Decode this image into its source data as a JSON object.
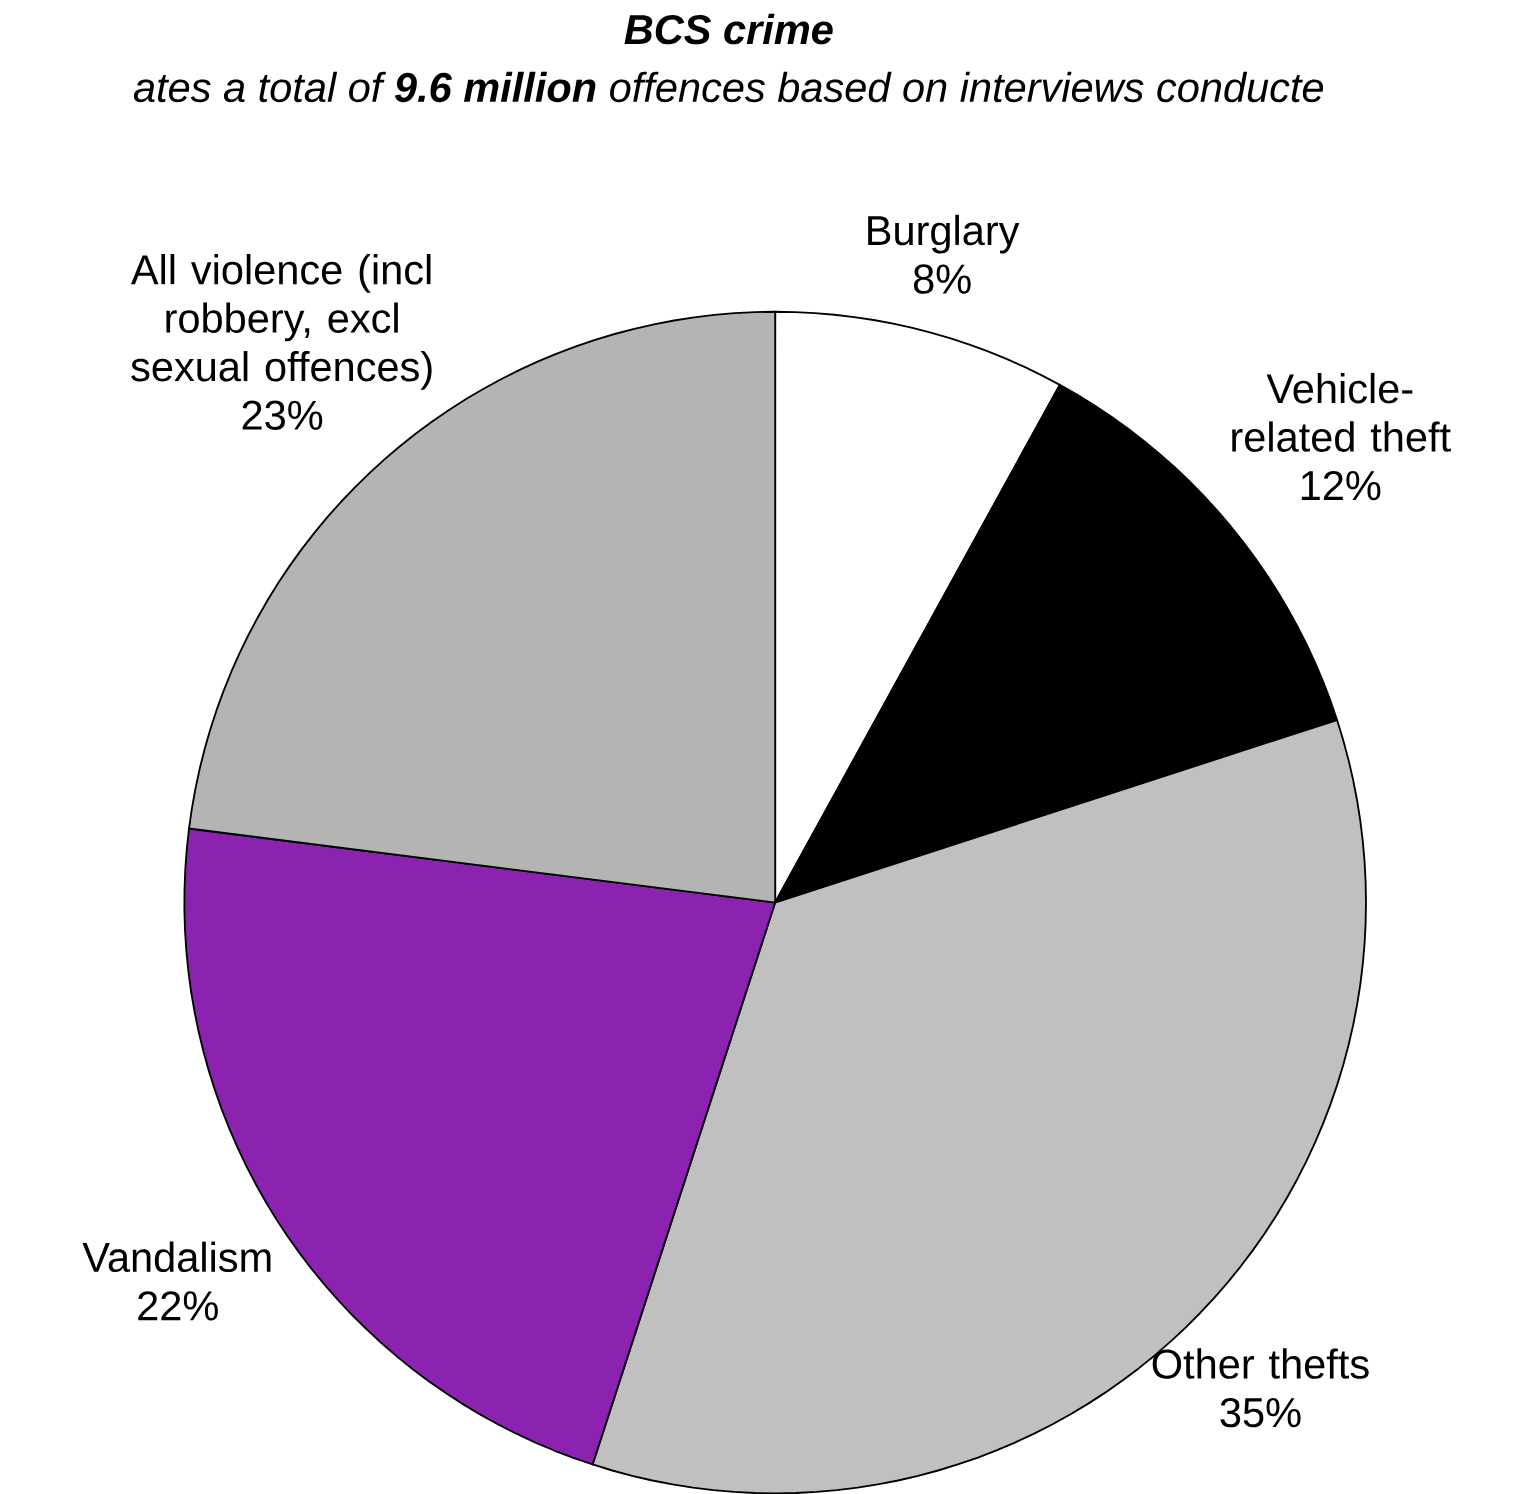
{
  "chart_data": {
    "type": "pie",
    "title": "*BCS crime*",
    "subtitle": "ates a total of **9.6 million** offences based on interviews conducte",
    "categories": [
      "Burglary",
      "Vehicle-related theft",
      "Other thefts",
      "Vandalism",
      "All violence (incl robbery, excl sexual offences)"
    ],
    "values": [
      8,
      12,
      35,
      22,
      23
    ],
    "value_labels": [
      "8%",
      "12%",
      "35%",
      "22%",
      "23%"
    ],
    "colors": [
      "#ffffff",
      "#000000",
      "#c0c0c0",
      "#8b22b0",
      "#b4b4b4"
    ]
  }
}
